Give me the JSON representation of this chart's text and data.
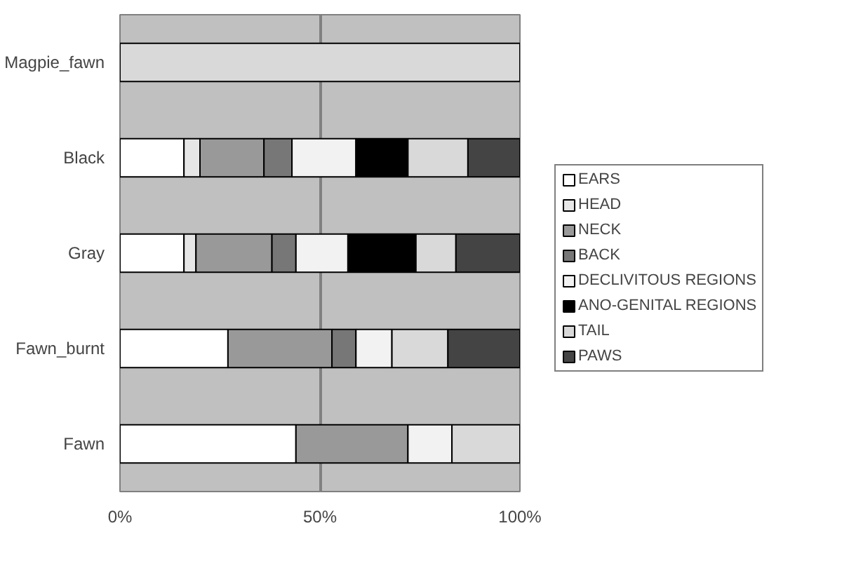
{
  "chart_data": {
    "type": "bar",
    "orientation": "horizontal",
    "stacked": true,
    "categories": [
      "Magpie_fawn",
      "Black",
      "Gray",
      "Fawn_burnt",
      "Fawn"
    ],
    "series": [
      {
        "name": "EARS",
        "color": "#ffffff",
        "values": [
          0,
          16,
          16,
          27,
          44
        ]
      },
      {
        "name": "HEAD",
        "color": "#e6e6e6",
        "values": [
          0,
          4,
          3,
          0,
          0
        ]
      },
      {
        "name": "NECK",
        "color": "#999999",
        "values": [
          0,
          16,
          19,
          26,
          28
        ]
      },
      {
        "name": "BACK",
        "color": "#777777",
        "values": [
          0,
          7,
          6,
          6,
          0
        ]
      },
      {
        "name": "DECLIVITOUS REGIONS",
        "color": "#f2f2f2",
        "values": [
          0,
          16,
          13,
          9,
          11
        ]
      },
      {
        "name": "ANO-GENITAL REGIONS",
        "color": "#000000",
        "values": [
          0,
          13,
          17,
          0,
          0
        ]
      },
      {
        "name": "TAIL",
        "color": "#d9d9d9",
        "values": [
          100,
          15,
          10,
          14,
          17
        ]
      },
      {
        "name": "PAWS",
        "color": "#444444",
        "values": [
          0,
          13,
          16,
          18,
          0
        ]
      }
    ],
    "xlim": [
      0,
      100
    ],
    "xticks": [
      {
        "value": 0,
        "label": "0%"
      },
      {
        "value": 50,
        "label": "50%"
      },
      {
        "value": 100,
        "label": "100%"
      }
    ],
    "grid": "x",
    "legend": "right"
  }
}
